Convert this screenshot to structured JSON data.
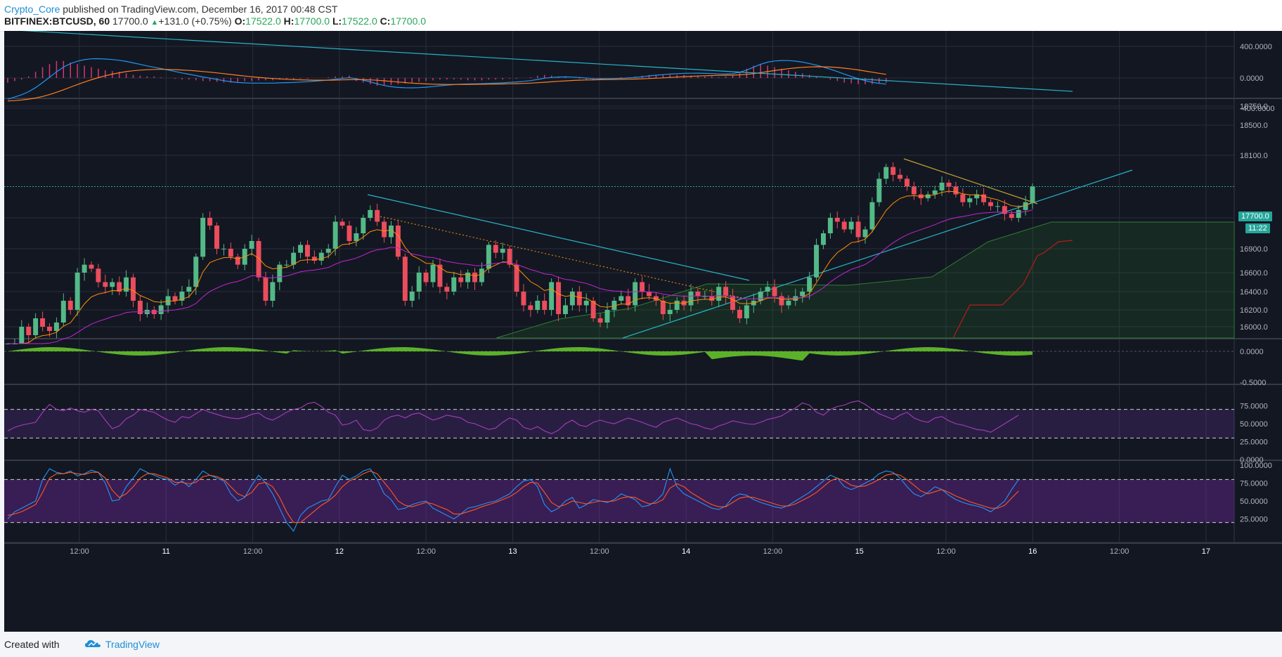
{
  "header": {
    "author": "Crypto_Core",
    "published_text": "published on TradingView.com, December 16, 2017 00:48 CST",
    "symbol": "BITFINEX:BTCUSD, 60",
    "last": "17700.0",
    "change": "+131.0 (+0.75%)",
    "open_label": "O:",
    "open": "17522.0",
    "high_label": "H:",
    "high": "17700.0",
    "low_label": "L:",
    "low": "17522.0",
    "close_label": "C:",
    "close": "17700.0",
    "change_icon": "triangle-up-icon"
  },
  "footer": {
    "created_with": "Created with",
    "brand": "TradingView",
    "brand_icon": "tradingview-cloud-icon"
  },
  "price_labels": {
    "current": "17700.0",
    "countdown": "11:22"
  },
  "colors": {
    "background": "#131722",
    "grid": "#2a2e39",
    "up": "#53b987",
    "down": "#eb4d5c",
    "current_price": "#26a69a",
    "accent": "#1d8ed6"
  },
  "chart_data": [
    {
      "type": "line",
      "panel": "macd",
      "axis_ticks": [
        "400.0000",
        "0.0000",
        "-400.0000"
      ],
      "ylim": [
        -420,
        520
      ],
      "series": [],
      "histogram": [
        -60,
        -40,
        -20,
        20,
        80,
        140,
        180,
        220,
        220,
        200,
        180,
        160,
        140,
        120,
        100,
        90,
        80,
        60,
        40,
        30,
        20,
        20,
        10,
        0,
        -10,
        -20,
        -20,
        -30,
        -40,
        -40,
        -50,
        -60,
        -60,
        -50,
        -40,
        -40,
        -30,
        -30,
        -30,
        -20,
        -20,
        -20,
        -10,
        -10,
        0,
        0,
        10,
        20,
        20,
        30,
        -40,
        -60,
        -80,
        -100,
        -100,
        -90,
        -80,
        -70,
        -60,
        -50,
        -40,
        -30,
        -20,
        -20,
        -20,
        -20,
        -30,
        -30,
        -30,
        -20,
        -20,
        -20,
        -10,
        -10,
        0,
        10,
        30,
        40,
        30,
        20,
        10,
        0,
        -10,
        -20,
        -20,
        -10,
        0,
        0,
        10,
        10,
        20,
        30,
        40,
        40,
        40,
        40,
        40,
        40,
        30,
        30,
        20,
        20,
        10,
        20,
        40,
        80,
        120,
        160,
        180,
        160,
        140,
        120,
        100,
        80,
        60,
        40,
        20,
        0,
        -20,
        -40,
        -60,
        -70,
        -80,
        -80,
        -80,
        -70,
        -60
      ]
    },
    {
      "type": "candlestick",
      "panel": "price",
      "ylim": [
        15800,
        18900
      ],
      "axis_ticks": [
        "18750.0",
        "18500.0",
        "18100.0",
        "17300.0",
        "16900.0",
        "16600.0",
        "16400.0",
        "16200.0",
        "16000.0"
      ],
      "x_ticks": [
        "12:00",
        "11",
        "12:00",
        "12",
        "12:00",
        "13",
        "12:00",
        "14",
        "12:00",
        "15",
        "12:00",
        "16",
        "12:00",
        "17"
      ],
      "current_price": 17700.0,
      "closes": [
        15720,
        15800,
        16000,
        15900,
        16100,
        16000,
        15950,
        16050,
        16300,
        16200,
        16600,
        16700,
        16650,
        16500,
        16450,
        16500,
        16400,
        16550,
        16300,
        16150,
        16200,
        16150,
        16250,
        16350,
        16300,
        16400,
        16450,
        16800,
        17300,
        17200,
        16900,
        16900,
        16800,
        16700,
        16900,
        17000,
        16550,
        16300,
        16500,
        16700,
        16700,
        16850,
        16950,
        16800,
        16750,
        16850,
        16900,
        17250,
        17200,
        17000,
        17100,
        17300,
        17400,
        17250,
        17050,
        17200,
        16800,
        16300,
        16400,
        16600,
        16500,
        16700,
        16450,
        16400,
        16550,
        16500,
        16600,
        16500,
        16650,
        16950,
        16850,
        16900,
        16700,
        16400,
        16250,
        16200,
        16300,
        16200,
        16500,
        16150,
        16250,
        16400,
        16250,
        16300,
        16100,
        16050,
        16200,
        16300,
        16350,
        16250,
        16500,
        16400,
        16350,
        16300,
        16150,
        16200,
        16300,
        16250,
        16400,
        16350,
        16350,
        16300,
        16450,
        16350,
        16200,
        16100,
        16250,
        16300,
        16400,
        16450,
        16350,
        16250,
        16300,
        16350,
        16400,
        16550,
        16950,
        17100,
        17300,
        17250,
        17150,
        17250,
        17050,
        17150,
        17500,
        17800,
        17950,
        17850,
        17800,
        17700,
        17600,
        17550,
        17600,
        17650,
        17750,
        17700,
        17600,
        17500,
        17550,
        17600,
        17500,
        17450,
        17450,
        17350,
        17300,
        17400,
        17500,
        17700
      ]
    },
    {
      "type": "area",
      "panel": "oscillator",
      "axis_ticks": [
        "0.0000",
        "-0.5000"
      ],
      "ylim": [
        -0.5,
        0.2
      ]
    },
    {
      "type": "line",
      "panel": "rsi",
      "axis_ticks": [
        "75.0000",
        "50.0000",
        "25.0000",
        "0.0000"
      ],
      "ylim": [
        0,
        100
      ],
      "series": [
        {
          "values": [
            40,
            45,
            48,
            50,
            52,
            66,
            77,
            70,
            68,
            72,
            68,
            66,
            70,
            68,
            55,
            43,
            47,
            57,
            62,
            70,
            68,
            66,
            60,
            55,
            52,
            60,
            58,
            64,
            70,
            66,
            63,
            60,
            58,
            57,
            59,
            63,
            65,
            58,
            55,
            60,
            66,
            70,
            72,
            78,
            80,
            74,
            66,
            62,
            48,
            50,
            55,
            42,
            40,
            44,
            55,
            60,
            62,
            58,
            63,
            65,
            60,
            55,
            58,
            62,
            60,
            58,
            52,
            50,
            46,
            42,
            44,
            52,
            58,
            55,
            45,
            42,
            46,
            40,
            36,
            41,
            50,
            55,
            48,
            46,
            52,
            55,
            52,
            50,
            54,
            58,
            55,
            52,
            48,
            45,
            52,
            55,
            58,
            54,
            50,
            48,
            44,
            42,
            47,
            50,
            54,
            52,
            50,
            49,
            52,
            56,
            58,
            61,
            67,
            72,
            79,
            76,
            66,
            62,
            70,
            74,
            76,
            80,
            82,
            77,
            70,
            64,
            60,
            56,
            62,
            66,
            58,
            54,
            52,
            58,
            60,
            54,
            50,
            48,
            45,
            42,
            41,
            38,
            44,
            50,
            56,
            62
          ]
        }
      ]
    },
    {
      "type": "line",
      "panel": "stochastic",
      "axis_ticks": [
        "100.0000",
        "75.0000",
        "50.0000",
        "25.0000"
      ],
      "ylim": [
        0,
        100
      ],
      "series": [
        {
          "values": [
            25,
            35,
            40,
            45,
            50,
            80,
            95,
            90,
            88,
            92,
            85,
            88,
            93,
            90,
            75,
            50,
            52,
            70,
            82,
            95,
            90,
            86,
            82,
            80,
            72,
            78,
            70,
            80,
            92,
            86,
            82,
            78,
            60,
            50,
            55,
            72,
            86,
            75,
            60,
            40,
            20,
            8,
            30,
            40,
            45,
            50,
            52,
            70,
            86,
            80,
            85,
            92,
            95,
            80,
            60,
            52,
            38,
            40,
            45,
            48,
            50,
            40,
            35,
            30,
            25,
            32,
            40,
            42,
            45,
            48,
            50,
            55,
            60,
            70,
            78,
            80,
            70,
            45,
            35,
            40,
            50,
            55,
            40,
            45,
            52,
            50,
            48,
            52,
            60,
            56,
            52,
            42,
            44,
            50,
            60,
            95,
            70,
            60,
            55,
            50,
            45,
            40,
            38,
            43,
            55,
            60,
            58,
            52,
            48,
            45,
            42,
            40,
            44,
            50,
            56,
            62,
            70,
            78,
            86,
            82,
            70,
            66,
            70,
            75,
            80,
            88,
            92,
            90,
            82,
            70,
            60,
            56,
            62,
            70,
            66,
            58,
            52,
            48,
            45,
            43,
            40,
            35,
            42,
            50,
            66,
            80
          ]
        },
        {
          "values": [
            30,
            32,
            35,
            40,
            45,
            62,
            82,
            88,
            88,
            90,
            88,
            87,
            90,
            90,
            82,
            65,
            55,
            60,
            70,
            82,
            88,
            88,
            85,
            82,
            76,
            76,
            74,
            76,
            84,
            86,
            84,
            80,
            70,
            60,
            56,
            62,
            74,
            76,
            70,
            55,
            35,
            20,
            20,
            28,
            36,
            44,
            50,
            58,
            70,
            78,
            82,
            88,
            92,
            88,
            76,
            64,
            50,
            44,
            42,
            45,
            48,
            46,
            42,
            38,
            32,
            32,
            35,
            38,
            42,
            45,
            48,
            52,
            56,
            62,
            70,
            76,
            75,
            62,
            48,
            42,
            45,
            50,
            48,
            46,
            48,
            50,
            49,
            50,
            54,
            56,
            55,
            50,
            46,
            47,
            52,
            68,
            74,
            70,
            62,
            56,
            50,
            45,
            42,
            42,
            48,
            54,
            56,
            55,
            52,
            49,
            46,
            43,
            43,
            46,
            51,
            56,
            62,
            70,
            78,
            82,
            78,
            72,
            70,
            71,
            75,
            80,
            86,
            88,
            86,
            80,
            72,
            64,
            60,
            63,
            66,
            62,
            57,
            53,
            49,
            46,
            43,
            40,
            40,
            44,
            54,
            64
          ]
        }
      ]
    }
  ]
}
